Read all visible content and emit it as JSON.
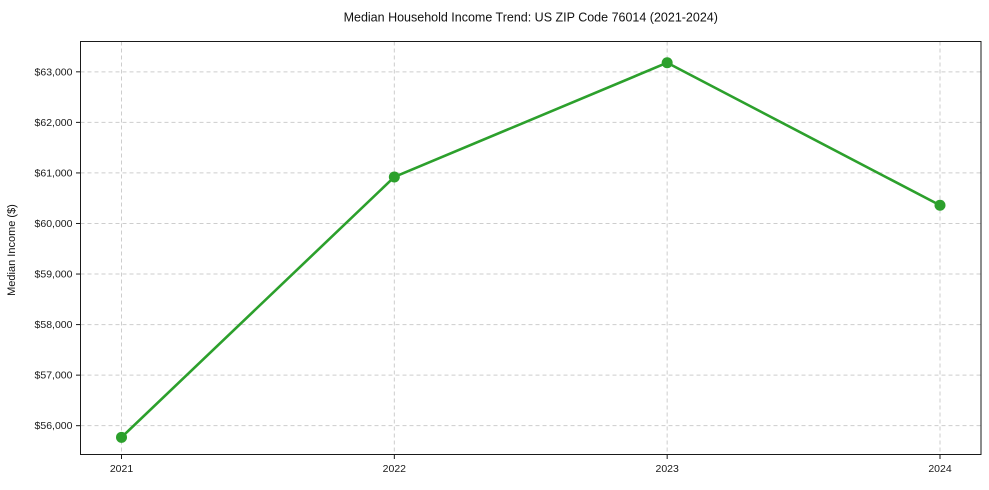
{
  "chart_data": {
    "type": "line",
    "title": "Median Household Income Trend: US ZIP Code 76014 (2021-2024)",
    "xlabel": "",
    "ylabel": "Median Income ($)",
    "x": [
      2021,
      2022,
      2023,
      2024
    ],
    "xtick_labels": [
      "2021",
      "2022",
      "2023",
      "2024"
    ],
    "series": [
      {
        "name": "Median Household Income",
        "values": [
          55770,
          60920,
          63180,
          60360
        ]
      }
    ],
    "ylim": [
      55430,
      63600
    ],
    "yticks": [
      56000,
      57000,
      58000,
      59000,
      60000,
      61000,
      62000,
      63000
    ],
    "ytick_labels": [
      "$56,000",
      "$57,000",
      "$58,000",
      "$59,000",
      "$60,000",
      "$61,000",
      "$62,000",
      "$63,000"
    ],
    "grid": true,
    "legend": false,
    "styles": {
      "line_color": "#2ca02c",
      "marker": "circle",
      "marker_radius": 5.5,
      "line_width": 2.6,
      "grid_color": "#cdcdcd",
      "axis_color": "#1a1a1a",
      "text_color": "#1a1a1a",
      "background": "#ffffff"
    }
  }
}
